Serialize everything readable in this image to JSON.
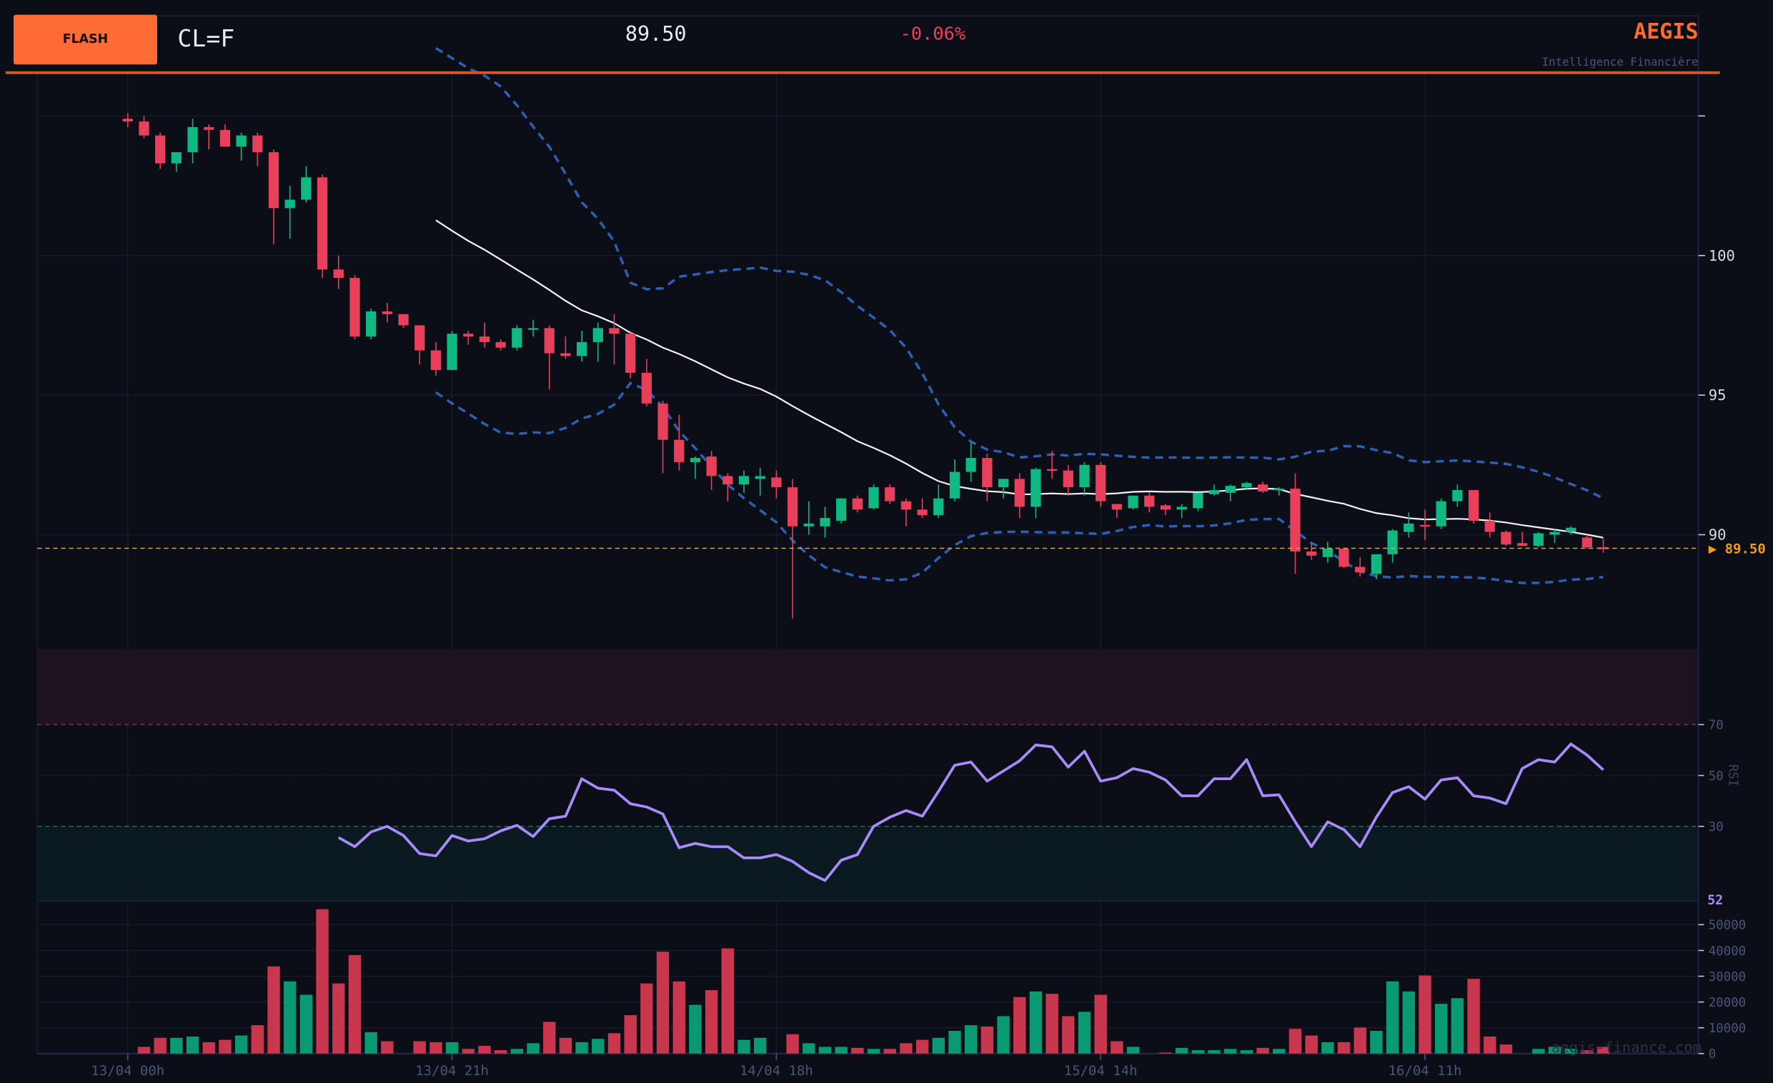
{
  "header": {
    "badge": "FLASH",
    "symbol": "CL=F",
    "price": "89.50",
    "change": "-0.06%",
    "brand": "AEGIS",
    "tagline": "Intelligence Financière"
  },
  "watermark": "aegis-finance.com",
  "colors": {
    "background": "#0b0e17",
    "grid": "#171b2a",
    "up": "#10b981",
    "down": "#e8405a",
    "volume_up": "#0a9a72",
    "volume_down": "#c8374e",
    "bollinger": "#2f5fb5",
    "sma": "#f2f2f2",
    "rsi": "#a78bfa",
    "last_price": "#f59e0b",
    "brand": "#ff6b35",
    "negative_change": "#f0405a"
  },
  "chart_data": [
    {
      "type": "candlestick",
      "panel": "price",
      "overlays": [
        "moving-average",
        "bollinger-bands"
      ],
      "x_ticks": [
        {
          "index": 0,
          "label": "13/04 00h"
        },
        {
          "index": 20,
          "label": "13/04 21h"
        },
        {
          "index": 40,
          "label": "14/04 18h"
        },
        {
          "index": 60,
          "label": "15/04 14h"
        },
        {
          "index": 80,
          "label": "16/04 11h"
        }
      ],
      "y_ticks": [
        90,
        95,
        100,
        105
      ],
      "y_tick_labels": [
        "90",
        "95",
        "100",
        ""
      ],
      "ylim": [
        86,
        107
      ],
      "last_price": 89.5,
      "last_price_label": "▶ 89.50",
      "candles_ohlc": [
        [
          104.9,
          105.1,
          104.6,
          104.8
        ],
        [
          104.8,
          105.0,
          104.2,
          104.3
        ],
        [
          104.3,
          104.4,
          103.1,
          103.3
        ],
        [
          103.3,
          103.7,
          103.0,
          103.7
        ],
        [
          103.7,
          104.9,
          103.3,
          104.6
        ],
        [
          104.6,
          104.7,
          103.8,
          104.5
        ],
        [
          104.5,
          104.7,
          103.9,
          103.9
        ],
        [
          103.9,
          104.4,
          103.4,
          104.3
        ],
        [
          104.3,
          104.4,
          103.2,
          103.7
        ],
        [
          103.7,
          103.8,
          100.4,
          101.7
        ],
        [
          101.7,
          102.5,
          100.6,
          102.0
        ],
        [
          102.0,
          103.2,
          101.9,
          102.8
        ],
        [
          102.8,
          102.9,
          99.2,
          99.5
        ],
        [
          99.5,
          100.0,
          98.8,
          99.2
        ],
        [
          99.2,
          99.3,
          97.0,
          97.1
        ],
        [
          97.1,
          98.1,
          97.0,
          98.0
        ],
        [
          98.0,
          98.3,
          97.6,
          97.9
        ],
        [
          97.9,
          97.9,
          97.4,
          97.5
        ],
        [
          97.5,
          97.5,
          96.1,
          96.6
        ],
        [
          96.6,
          96.9,
          95.7,
          95.9
        ],
        [
          95.9,
          97.3,
          95.9,
          97.2
        ],
        [
          97.2,
          97.3,
          96.8,
          97.1
        ],
        [
          97.1,
          97.6,
          96.7,
          96.9
        ],
        [
          96.9,
          97.0,
          96.6,
          96.7
        ],
        [
          96.7,
          97.5,
          96.6,
          97.4
        ],
        [
          97.35,
          97.7,
          97.1,
          97.4
        ],
        [
          97.4,
          97.5,
          95.2,
          96.5
        ],
        [
          96.5,
          97.1,
          96.3,
          96.4
        ],
        [
          96.4,
          97.3,
          96.2,
          96.9
        ],
        [
          96.9,
          97.6,
          96.2,
          97.4
        ],
        [
          97.4,
          97.9,
          96.1,
          97.2
        ],
        [
          97.2,
          97.3,
          95.6,
          95.8
        ],
        [
          95.8,
          96.3,
          94.6,
          94.7
        ],
        [
          94.7,
          94.8,
          92.2,
          93.4
        ],
        [
          93.4,
          94.3,
          92.3,
          92.6
        ],
        [
          92.6,
          92.8,
          92.0,
          92.75
        ],
        [
          92.8,
          93.0,
          91.6,
          92.1
        ],
        [
          92.1,
          92.2,
          91.2,
          91.8
        ],
        [
          91.8,
          92.3,
          91.5,
          92.1
        ],
        [
          92.0,
          92.4,
          91.4,
          92.1
        ],
        [
          92.05,
          92.3,
          91.3,
          91.7
        ],
        [
          91.7,
          92.0,
          87.0,
          90.3
        ],
        [
          90.3,
          91.2,
          90.0,
          90.4
        ],
        [
          90.3,
          91.0,
          89.9,
          90.6
        ],
        [
          90.5,
          91.3,
          90.4,
          91.3
        ],
        [
          91.3,
          91.4,
          90.8,
          90.9
        ],
        [
          90.95,
          91.8,
          90.9,
          91.7
        ],
        [
          91.7,
          91.8,
          91.1,
          91.2
        ],
        [
          91.2,
          91.3,
          90.3,
          90.9
        ],
        [
          90.9,
          91.3,
          90.6,
          90.7
        ],
        [
          90.7,
          91.8,
          90.6,
          91.3
        ],
        [
          91.3,
          92.7,
          91.2,
          92.25
        ],
        [
          92.25,
          93.3,
          91.9,
          92.75
        ],
        [
          92.75,
          92.9,
          91.2,
          91.7
        ],
        [
          91.7,
          92.0,
          91.3,
          92.0
        ],
        [
          92.0,
          92.2,
          90.6,
          91.0
        ],
        [
          91.0,
          92.4,
          90.6,
          92.35
        ],
        [
          92.35,
          93.0,
          92.0,
          92.3
        ],
        [
          92.3,
          92.5,
          91.4,
          91.7
        ],
        [
          91.7,
          92.6,
          91.4,
          92.5
        ],
        [
          92.5,
          92.6,
          91.0,
          91.2
        ],
        [
          91.1,
          91.1,
          90.6,
          90.9
        ],
        [
          90.95,
          91.4,
          90.9,
          91.4
        ],
        [
          91.4,
          91.5,
          90.8,
          91.0
        ],
        [
          91.05,
          91.1,
          90.7,
          90.9
        ],
        [
          90.9,
          91.1,
          90.6,
          91.0
        ],
        [
          90.95,
          91.5,
          90.85,
          91.5
        ],
        [
          91.45,
          91.8,
          91.4,
          91.6
        ],
        [
          91.5,
          91.8,
          91.2,
          91.75
        ],
        [
          91.7,
          91.9,
          91.6,
          91.85
        ],
        [
          91.8,
          91.9,
          91.5,
          91.55
        ],
        [
          91.6,
          91.7,
          91.4,
          91.65
        ],
        [
          91.65,
          92.2,
          88.6,
          89.4
        ],
        [
          89.4,
          89.7,
          89.1,
          89.25
        ],
        [
          89.2,
          89.75,
          89.0,
          89.5
        ],
        [
          89.5,
          89.5,
          88.8,
          88.85
        ],
        [
          88.85,
          89.2,
          88.5,
          88.65
        ],
        [
          88.6,
          89.3,
          88.4,
          89.3
        ],
        [
          89.3,
          90.2,
          89.0,
          90.15
        ],
        [
          90.1,
          90.8,
          89.9,
          90.4
        ],
        [
          90.35,
          90.9,
          89.8,
          90.3
        ],
        [
          90.3,
          91.3,
          90.2,
          91.2
        ],
        [
          91.2,
          91.8,
          91.0,
          91.6
        ],
        [
          91.6,
          91.6,
          90.4,
          90.5
        ],
        [
          90.5,
          90.8,
          89.9,
          90.1
        ],
        [
          90.1,
          90.15,
          89.6,
          89.65
        ],
        [
          89.7,
          90.1,
          89.6,
          89.6
        ],
        [
          89.6,
          90.1,
          89.55,
          90.05
        ],
        [
          90.0,
          90.2,
          89.7,
          90.1
        ],
        [
          90.1,
          90.3,
          90.0,
          90.25
        ],
        [
          89.9,
          90.0,
          89.5,
          89.55
        ],
        [
          89.55,
          89.85,
          89.35,
          89.5
        ]
      ]
    },
    {
      "type": "line",
      "panel": "rsi",
      "ylabel": "RSI",
      "ylim": [
        0,
        100
      ],
      "y_ticks": [
        30,
        50,
        70
      ],
      "y_tick_labels": [
        "30",
        "50",
        "70"
      ],
      "overbought": 70,
      "oversold": 30,
      "last_value_label": "52",
      "start_index": 13,
      "values": [
        25.6,
        22,
        27.8,
        30,
        26.4,
        19.3,
        18.4,
        26.4,
        24.2,
        25.1,
        28.2,
        30.4,
        26,
        33,
        34,
        48.7,
        45,
        44.2,
        38.9,
        37.6,
        34.9,
        21.6,
        23.3,
        22,
        22,
        17.6,
        17.6,
        18.9,
        16.2,
        11.8,
        8.7,
        16.7,
        18.9,
        30,
        33.6,
        36.2,
        34,
        43.8,
        54,
        55.3,
        47.8,
        51.8,
        55.8,
        62,
        61.3,
        53.3,
        59.5,
        47.8,
        49.1,
        52.7,
        51.3,
        48.2,
        42,
        42,
        48.7,
        48.7,
        56.2,
        42,
        42.4,
        31.8,
        22,
        31.8,
        28.7,
        22,
        33.6,
        43.3,
        45.6,
        40.7,
        48.2,
        49.1,
        42,
        41.1,
        38.9,
        52.7,
        56.2,
        55.3,
        62.4,
        58,
        52.2
      ]
    },
    {
      "type": "bar",
      "panel": "volume",
      "ylim": [
        0,
        59000
      ],
      "y_ticks": [
        0,
        10000,
        20000,
        30000,
        40000,
        50000
      ],
      "y_tick_labels": [
        "0",
        "10000",
        "20000",
        "30000",
        "40000",
        "50000"
      ],
      "values": [
        0,
        2600,
        6100,
        6100,
        6600,
        4400,
        5300,
        7000,
        11000,
        33800,
        28000,
        22800,
        56000,
        27200,
        38200,
        8300,
        4800,
        0,
        4800,
        4400,
        4400,
        1800,
        3000,
        1300,
        1800,
        4000,
        12300,
        6100,
        4400,
        5700,
        7900,
        14900,
        27200,
        39500,
        28000,
        18900,
        24600,
        40800,
        5300,
        6100,
        0,
        7500,
        4000,
        2600,
        2600,
        2200,
        1800,
        1800,
        4000,
        5300,
        6100,
        8800,
        11000,
        10500,
        14500,
        21900,
        24100,
        23200,
        14500,
        16200,
        22800,
        4800,
        2600,
        0,
        400,
        2200,
        1300,
        1300,
        1800,
        1300,
        2200,
        1800,
        9600,
        7000,
        4400,
        4400,
        10100,
        8800,
        28000,
        24100,
        30300,
        19300,
        21500,
        29000,
        6600,
        3500,
        0,
        1800,
        2600,
        1800,
        1300,
        2600
      ]
    }
  ]
}
